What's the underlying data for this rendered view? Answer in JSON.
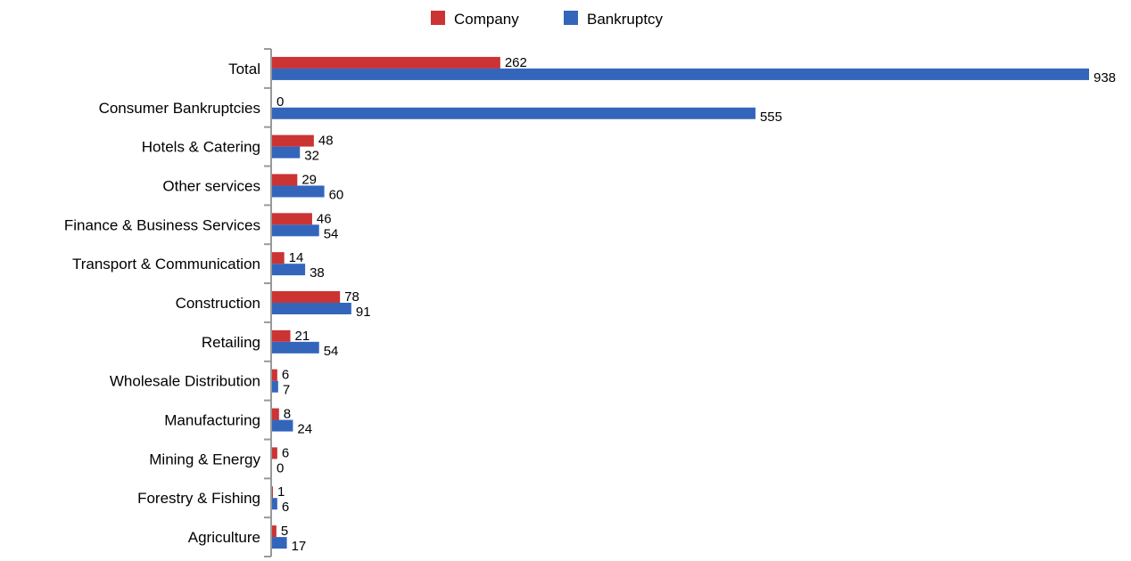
{
  "chart_data": {
    "type": "bar",
    "orientation": "horizontal",
    "categories": [
      "Total",
      "Consumer Bankruptcies",
      "Hotels & Catering",
      "Other services",
      "Finance & Business Services",
      "Transport & Communication",
      "Construction",
      "Retailing",
      "Wholesale Distribution",
      "Manufacturing",
      "Mining & Energy",
      "Forestry & Fishing",
      "Agriculture"
    ],
    "series": [
      {
        "name": "Company",
        "color": "#cc3333",
        "values": [
          262,
          0,
          48,
          29,
          46,
          14,
          78,
          21,
          6,
          8,
          6,
          1,
          5
        ]
      },
      {
        "name": "Bankruptcy",
        "color": "#3366bb",
        "values": [
          938,
          555,
          32,
          60,
          54,
          38,
          91,
          54,
          7,
          24,
          0,
          6,
          17
        ]
      }
    ],
    "xlim": [
      0,
      938
    ],
    "title": "",
    "xlabel": "",
    "ylabel": "",
    "legend_position": "top",
    "grid": false,
    "data_labels": true
  }
}
